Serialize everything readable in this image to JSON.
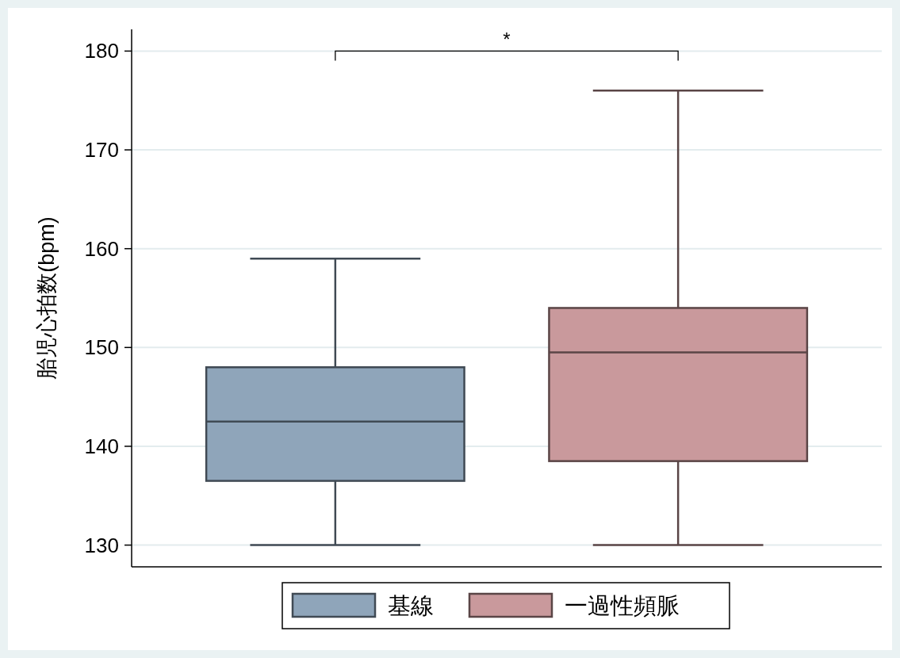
{
  "chart_data": {
    "type": "box",
    "ylabel": "胎児心拍数(bpm)",
    "categories": [
      null
    ],
    "series": [
      {
        "name": "基線",
        "color": "#8fa5ba",
        "boxes": [
          {
            "low": 130,
            "q1": 136.5,
            "median": 142.5,
            "q3": 148,
            "high": 159
          }
        ]
      },
      {
        "name": "一過性頻脈",
        "color": "#c9999c",
        "boxes": [
          {
            "low": 130,
            "q1": 138.5,
            "median": 149.5,
            "q3": 154,
            "high": 176
          }
        ]
      }
    ],
    "annotations": [
      "*"
    ],
    "ylim": [
      127.8,
      182.2
    ],
    "yticks": [
      130,
      140,
      150,
      160,
      170,
      180
    ],
    "grid": "y",
    "legend": "bottom"
  }
}
